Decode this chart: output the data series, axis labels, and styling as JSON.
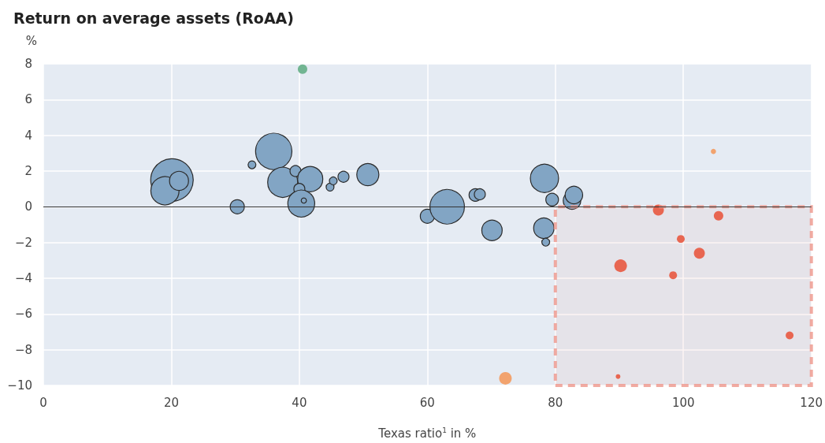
{
  "chart_data": {
    "type": "bubble",
    "title": "Return on average assets (RoAA)",
    "xlabel": "Texas ratio$^{1}$ in %",
    "ylabel": "%",
    "xlim": [
      0,
      120
    ],
    "xticks": [
      0,
      20,
      40,
      60,
      80,
      100,
      120
    ],
    "ylim": [
      -10,
      8
    ],
    "yticks": [
      {
        "value": -10,
        "label": "−10"
      },
      {
        "value": -8,
        "label": "−8"
      },
      {
        "value": -6,
        "label": "−6"
      },
      {
        "value": -4,
        "label": "−4"
      },
      {
        "value": -2,
        "label": "−2"
      },
      0,
      2,
      4,
      6,
      8
    ],
    "grid": true,
    "marker": "circle",
    "ref_lines": [
      {
        "axis": "y",
        "value": 0,
        "color": "#333333"
      }
    ],
    "bands": [
      {
        "axis": "x",
        "from": 80,
        "to": 120,
        "color": "#ee9c92"
      }
    ],
    "series": [
      {
        "color": "#82a5c4",
        "x": [
          20.1,
          19.0,
          21.2,
          30.3,
          32.6,
          36.0,
          37.4,
          39.4,
          41.7,
          40.0,
          40.3,
          40.7,
          44.8,
          45.3,
          46.9,
          50.7,
          60.0,
          63.1,
          67.5,
          68.2,
          70.1,
          78.3,
          79.5,
          78.2,
          78.5,
          82.6,
          82.9
        ],
        "values": [
          1.5,
          0.9,
          1.45,
          0.0,
          2.35,
          3.1,
          1.37,
          2.0,
          1.55,
          1.0,
          0.18,
          0.35,
          1.1,
          1.45,
          1.68,
          1.8,
          -0.53,
          0.0,
          0.66,
          0.7,
          -1.32,
          1.59,
          0.4,
          -1.2,
          -1.98,
          0.35,
          0.66
        ],
        "sizes": [
          1.0,
          0.44,
          0.2,
          0.11,
          0.034,
          0.73,
          0.5,
          0.067,
          0.35,
          0.067,
          0.4,
          0.015,
          0.034,
          0.034,
          0.067,
          0.27,
          0.11,
          0.66,
          0.088,
          0.067,
          0.23,
          0.44,
          0.088,
          0.23,
          0.034,
          0.17,
          0.17
        ]
      },
      {
        "color": "#72b592",
        "x": [
          40.5
        ],
        "values": [
          7.7
        ],
        "sizes": [
          0.05
        ]
      },
      {
        "color": "#e8604a",
        "x": [
          96.1,
          105.5,
          99.6,
          102.5,
          90.2,
          98.4,
          116.6,
          89.8
        ],
        "values": [
          -0.18,
          -0.5,
          -1.8,
          -2.6,
          -3.3,
          -3.83,
          -7.2,
          -9.5
        ],
        "sizes": [
          0.067,
          0.05,
          0.034,
          0.067,
          0.088,
          0.034,
          0.034,
          0.012
        ]
      },
      {
        "color": "#f2a36e",
        "x": [
          104.7,
          72.2
        ],
        "values": [
          3.1,
          -9.6
        ],
        "sizes": [
          0.015,
          0.088
        ]
      }
    ]
  }
}
